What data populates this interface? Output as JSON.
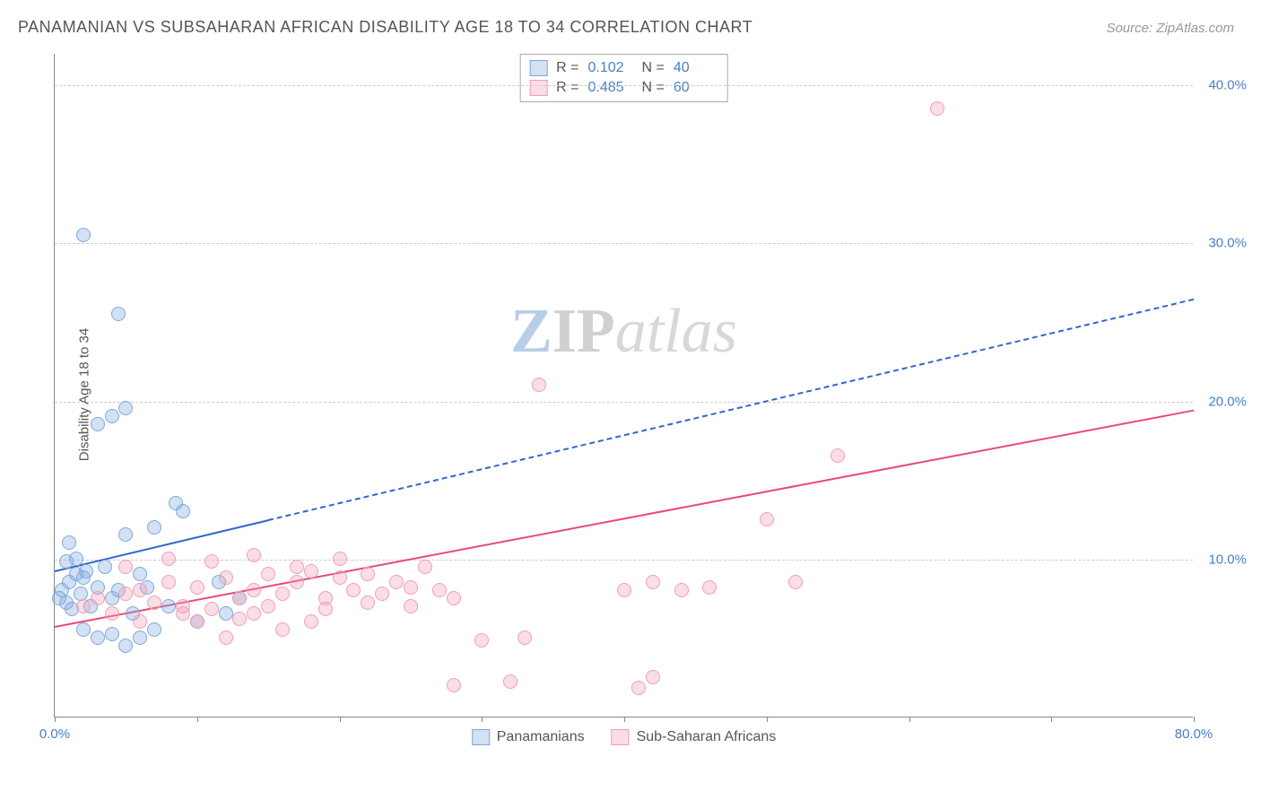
{
  "header": {
    "title": "PANAMANIAN VS SUBSAHARAN AFRICAN DISABILITY AGE 18 TO 34 CORRELATION CHART",
    "source": "Source: ZipAtlas.com"
  },
  "ylabel": "Disability Age 18 to 34",
  "watermark": {
    "z": "Z",
    "ip": "IP",
    "rest": "atlas"
  },
  "chart": {
    "type": "scatter",
    "xlim": [
      0,
      80
    ],
    "ylim": [
      0,
      42
    ],
    "xticks": [
      0,
      10,
      20,
      30,
      40,
      50,
      60,
      70,
      80
    ],
    "xtick_labels": {
      "0": "0.0%",
      "80": "80.0%"
    },
    "yticks": [
      10,
      20,
      30,
      40
    ],
    "ytick_labels": [
      "10.0%",
      "20.0%",
      "30.0%",
      "40.0%"
    ],
    "grid_color": "#cccccc",
    "axis_color": "#888888",
    "background": "#ffffff",
    "series": [
      {
        "name": "Panamanians",
        "fill": "rgba(127,168,222,0.35)",
        "stroke": "#7fa8de",
        "trend_color": "#3366cc",
        "points": [
          [
            0.3,
            7.5
          ],
          [
            0.5,
            8.0
          ],
          [
            0.8,
            7.2
          ],
          [
            1.0,
            8.5
          ],
          [
            1.2,
            6.8
          ],
          [
            1.5,
            9.0
          ],
          [
            1.8,
            7.8
          ],
          [
            2.0,
            8.8
          ],
          [
            1.0,
            11.0
          ],
          [
            2.5,
            7.0
          ],
          [
            3.0,
            8.2
          ],
          [
            3.5,
            9.5
          ],
          [
            4.0,
            7.5
          ],
          [
            4.5,
            8.0
          ],
          [
            5.0,
            11.5
          ],
          [
            5.5,
            6.5
          ],
          [
            6.0,
            9.0
          ],
          [
            6.5,
            8.2
          ],
          [
            7.0,
            12.0
          ],
          [
            8.0,
            7.0
          ],
          [
            8.5,
            13.5
          ],
          [
            9.0,
            13.0
          ],
          [
            2.0,
            5.5
          ],
          [
            3.0,
            5.0
          ],
          [
            4.0,
            5.2
          ],
          [
            5.0,
            4.5
          ],
          [
            6.0,
            5.0
          ],
          [
            7.0,
            5.5
          ],
          [
            10.0,
            6.0
          ],
          [
            12.0,
            6.5
          ],
          [
            2.0,
            30.5
          ],
          [
            4.5,
            25.5
          ],
          [
            4.0,
            19.0
          ],
          [
            5.0,
            19.5
          ],
          [
            3.0,
            18.5
          ],
          [
            11.5,
            8.5
          ],
          [
            13.0,
            7.5
          ],
          [
            1.5,
            10.0
          ],
          [
            2.2,
            9.2
          ],
          [
            0.8,
            9.8
          ]
        ],
        "trend": {
          "x1": 0,
          "y1": 9.3,
          "x2": 80,
          "y2": 26.5,
          "solid_until_x": 15
        }
      },
      {
        "name": "Sub-Saharan Africans",
        "fill": "rgba(241,159,181,0.35)",
        "stroke": "#f19fb5",
        "trend_color": "#e84a7a",
        "points": [
          [
            2,
            7.0
          ],
          [
            3,
            7.5
          ],
          [
            4,
            6.5
          ],
          [
            5,
            7.8
          ],
          [
            6,
            8.0
          ],
          [
            7,
            7.2
          ],
          [
            8,
            8.5
          ],
          [
            9,
            7.0
          ],
          [
            10,
            8.2
          ],
          [
            11,
            6.8
          ],
          [
            12,
            8.8
          ],
          [
            13,
            7.5
          ],
          [
            14,
            8.0
          ],
          [
            15,
            9.0
          ],
          [
            16,
            7.8
          ],
          [
            17,
            8.5
          ],
          [
            18,
            9.2
          ],
          [
            19,
            7.5
          ],
          [
            20,
            8.8
          ],
          [
            21,
            8.0
          ],
          [
            22,
            9.0
          ],
          [
            23,
            7.8
          ],
          [
            24,
            8.5
          ],
          [
            25,
            8.2
          ],
          [
            26,
            9.5
          ],
          [
            27,
            8.0
          ],
          [
            28,
            7.5
          ],
          [
            12,
            5.0
          ],
          [
            10,
            6.0
          ],
          [
            14,
            6.5
          ],
          [
            16,
            5.5
          ],
          [
            18,
            6.0
          ],
          [
            28,
            2.0
          ],
          [
            30,
            4.8
          ],
          [
            32,
            2.2
          ],
          [
            33,
            5.0
          ],
          [
            34,
            21.0
          ],
          [
            40,
            8.0
          ],
          [
            42,
            8.5
          ],
          [
            42,
            2.5
          ],
          [
            41,
            1.8
          ],
          [
            44,
            8.0
          ],
          [
            46,
            8.2
          ],
          [
            50,
            12.5
          ],
          [
            52,
            8.5
          ],
          [
            55,
            16.5
          ],
          [
            62,
            38.5
          ],
          [
            5,
            9.5
          ],
          [
            8,
            10.0
          ],
          [
            11,
            9.8
          ],
          [
            14,
            10.2
          ],
          [
            17,
            9.5
          ],
          [
            20,
            10.0
          ],
          [
            6,
            6.0
          ],
          [
            9,
            6.5
          ],
          [
            13,
            6.2
          ],
          [
            15,
            7.0
          ],
          [
            19,
            6.8
          ],
          [
            22,
            7.2
          ],
          [
            25,
            7.0
          ]
        ],
        "trend": {
          "x1": 0,
          "y1": 5.8,
          "x2": 80,
          "y2": 19.5,
          "solid_until_x": 80
        }
      }
    ]
  },
  "stats": {
    "rows": [
      {
        "swatch_fill": "rgba(127,168,222,0.35)",
        "swatch_stroke": "#7fa8de",
        "r_label": "R =",
        "r": "0.102",
        "n_label": "N =",
        "n": "40"
      },
      {
        "swatch_fill": "rgba(241,159,181,0.35)",
        "swatch_stroke": "#f19fb5",
        "r_label": "R =",
        "r": "0.485",
        "n_label": "N =",
        "n": "60"
      }
    ]
  },
  "legend": {
    "items": [
      {
        "swatch_fill": "rgba(127,168,222,0.35)",
        "swatch_stroke": "#7fa8de",
        "label": "Panamanians"
      },
      {
        "swatch_fill": "rgba(241,159,181,0.35)",
        "swatch_stroke": "#f19fb5",
        "label": "Sub-Saharan Africans"
      }
    ]
  }
}
